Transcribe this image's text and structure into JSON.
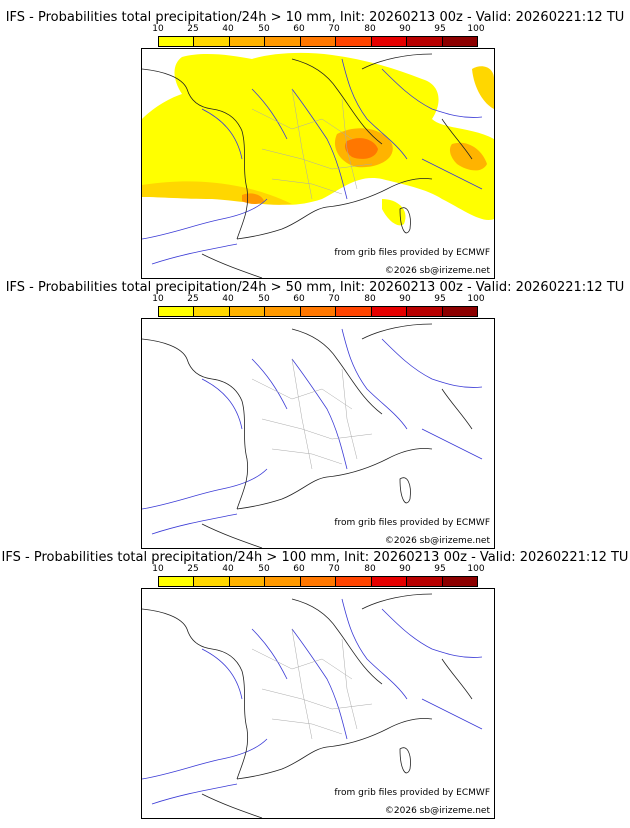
{
  "colorbar": {
    "ticks": [
      "10",
      "25",
      "40",
      "50",
      "60",
      "70",
      "80",
      "90",
      "95",
      "100"
    ],
    "colors": [
      "#ffff00",
      "#ffd700",
      "#ffb300",
      "#ff9900",
      "#ff7700",
      "#ff4400",
      "#e60000",
      "#b80000",
      "#8c0000",
      "#5a0000"
    ]
  },
  "panels": [
    {
      "title": "IFS - Probabilities total precipitation/24h > 10 mm, Init: 20260213 00z - Valid: 20260221:12 TU",
      "source": "from grib files provided by ECMWF",
      "copyright": "©2026 sb@irizeme.net"
    },
    {
      "title": "IFS - Probabilities total precipitation/24h > 50 mm, Init: 20260213 00z - Valid: 20260221:12 TU",
      "source": "from grib files provided by ECMWF",
      "copyright": "©2026 sb@irizeme.net"
    },
    {
      "title": "IFS - Probabilities total precipitation/24h > 100 mm, Init: 20260213 00z - Valid: 20260221:12 TU",
      "source": "from grib files provided by ECMWF",
      "copyright": "©2026 sb@irizeme.net"
    }
  ]
}
